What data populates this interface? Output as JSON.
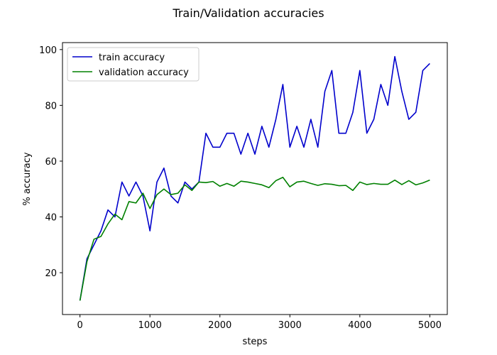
{
  "chart_data": {
    "type": "line",
    "title": "Train/Validation accuracies",
    "xlabel": "steps",
    "ylabel": "% accuracy",
    "xlim": [
      -250,
      5250
    ],
    "ylim": [
      5,
      102.5
    ],
    "xticks": [
      0,
      1000,
      2000,
      3000,
      4000,
      5000
    ],
    "yticks": [
      20,
      40,
      60,
      80,
      100
    ],
    "grid": false,
    "legend_position": "top-left",
    "x": [
      0,
      100,
      200,
      300,
      400,
      500,
      600,
      700,
      800,
      900,
      1000,
      1100,
      1200,
      1300,
      1400,
      1500,
      1600,
      1700,
      1800,
      1900,
      2000,
      2100,
      2200,
      2300,
      2400,
      2500,
      2600,
      2700,
      2800,
      2900,
      3000,
      3100,
      3200,
      3300,
      3400,
      3500,
      3600,
      3700,
      3800,
      3900,
      4000,
      4100,
      4200,
      4300,
      4400,
      4500,
      4600,
      4700,
      4800,
      4900,
      5000
    ],
    "series": [
      {
        "name": "train accuracy",
        "color": "#0000cc",
        "values": [
          10,
          25,
          30,
          35,
          42.5,
          40,
          52.5,
          47.5,
          52.5,
          47.5,
          35,
          52.5,
          57.5,
          47.5,
          45,
          52.5,
          50,
          52.5,
          70,
          65,
          65,
          70,
          70,
          62.5,
          70,
          62.5,
          72.5,
          65,
          75,
          87.5,
          65,
          72.5,
          65,
          75,
          65,
          85,
          92.5,
          70,
          70,
          77.5,
          92.5,
          70,
          75,
          87.5,
          80,
          97.5,
          85,
          75,
          77.5,
          92.5,
          95
        ]
      },
      {
        "name": "validation accuracy",
        "color": "#008000",
        "values": [
          10,
          24,
          32,
          33,
          37.5,
          41,
          39,
          45.5,
          45,
          48.5,
          43,
          48,
          50,
          48,
          48.5,
          51.5,
          49.5,
          52.5,
          52.3,
          52.7,
          51,
          52,
          51,
          52.8,
          52.5,
          52,
          51.5,
          50.5,
          53,
          54.2,
          50.8,
          52.5,
          52.8,
          52,
          51.3,
          51.9,
          51.7,
          51.2,
          51.3,
          49.5,
          52.5,
          51.6,
          52,
          51.7,
          51.7,
          53.2,
          51.6,
          53,
          51.5,
          52.2,
          53.2
        ]
      }
    ]
  }
}
